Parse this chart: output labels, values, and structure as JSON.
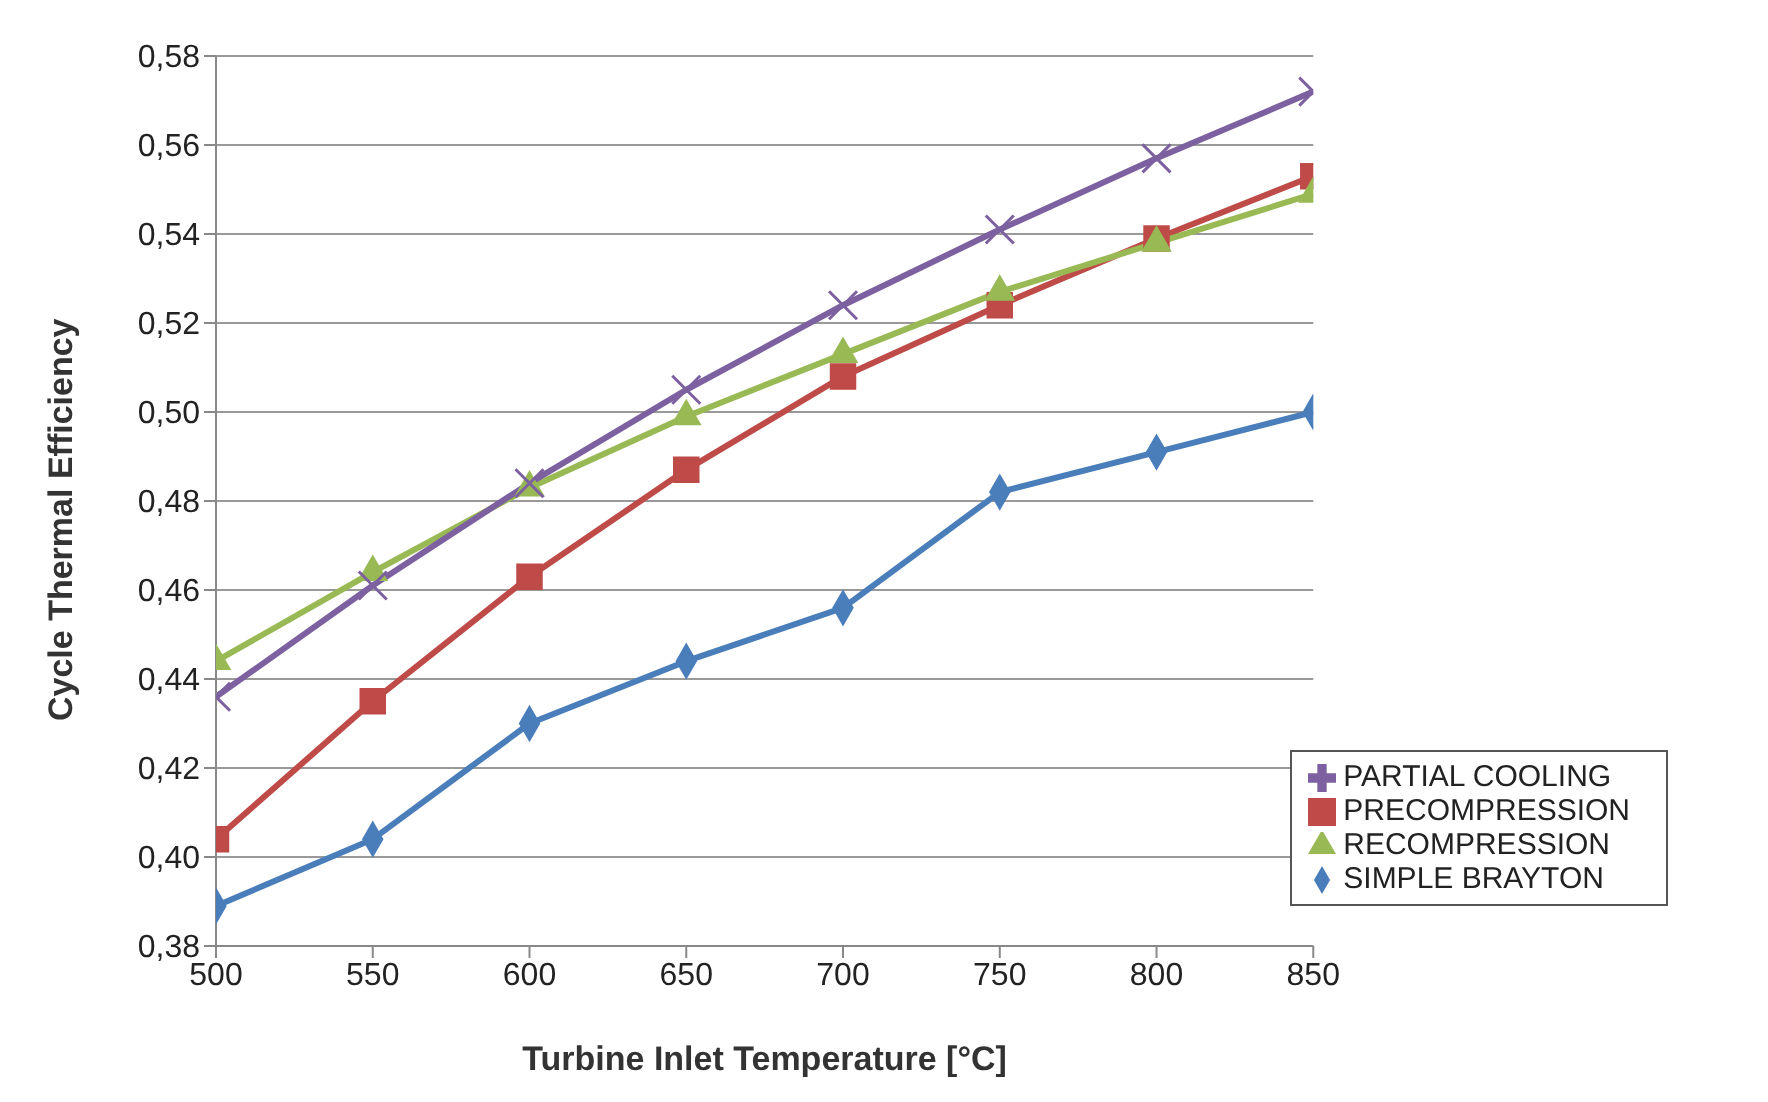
{
  "chart_data": {
    "type": "line",
    "xlabel": "Turbine Inlet Temperature [°C]",
    "ylabel": "Cycle Thermal Efficiency",
    "x": [
      500,
      550,
      600,
      650,
      700,
      750,
      800,
      850
    ],
    "series": [
      {
        "name": "SIMPLE BRAYTON",
        "color": "#4a7ebb",
        "marker": "diamond",
        "values": [
          0.389,
          0.404,
          0.43,
          0.444,
          0.456,
          0.482,
          0.491,
          0.5
        ]
      },
      {
        "name": "PRECOMPRESSION",
        "color": "#be4b48",
        "marker": "square",
        "values": [
          0.404,
          0.435,
          0.463,
          0.487,
          0.508,
          0.524,
          0.539,
          0.553
        ]
      },
      {
        "name": "RECOMPRESSION",
        "color": "#98b954",
        "marker": "triangle",
        "values": [
          0.444,
          0.464,
          0.483,
          0.499,
          0.513,
          0.527,
          0.538,
          0.549
        ]
      },
      {
        "name": "PARTIAL COOLING",
        "color": "#7d60a0",
        "marker": "cross",
        "values": [
          0.436,
          0.461,
          0.484,
          0.505,
          0.524,
          0.541,
          0.557,
          0.572
        ]
      }
    ],
    "xlim": [
      500,
      850
    ],
    "xticks": [
      500,
      550,
      600,
      650,
      700,
      750,
      800,
      850
    ],
    "ylim": [
      0.38,
      0.58
    ],
    "yticks": [
      {
        "value": 0.38,
        "label": "0,38"
      },
      {
        "value": 0.4,
        "label": "0,40"
      },
      {
        "value": 0.42,
        "label": "0,42"
      },
      {
        "value": 0.44,
        "label": "0,44"
      },
      {
        "value": 0.46,
        "label": "0,46"
      },
      {
        "value": 0.48,
        "label": "0,48"
      },
      {
        "value": 0.5,
        "label": "0,50"
      },
      {
        "value": 0.52,
        "label": "0,52"
      },
      {
        "value": 0.54,
        "label": "0,54"
      },
      {
        "value": 0.56,
        "label": "0,56"
      },
      {
        "value": 0.58,
        "label": "0,58"
      }
    ],
    "grid": "y",
    "legend": "bottom right",
    "line_style": "solid"
  }
}
